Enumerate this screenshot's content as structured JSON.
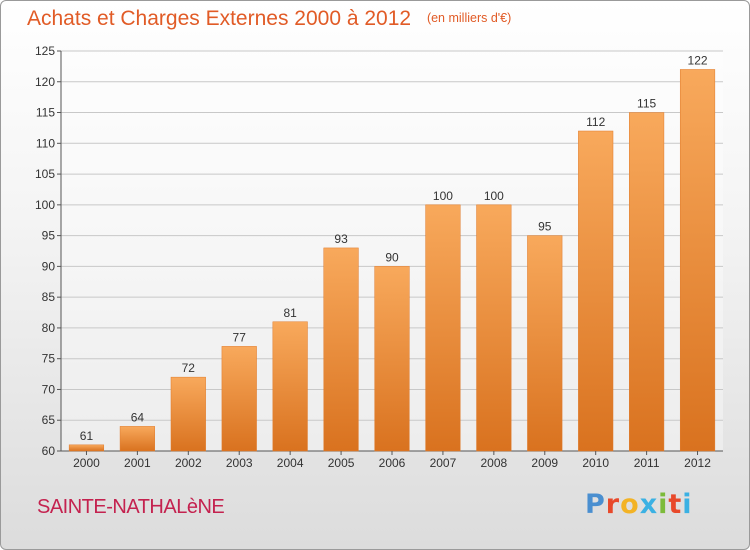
{
  "header": {
    "title": "Achats et Charges Externes 2000 à 2012",
    "unit": "(en milliers d'€)"
  },
  "footer": {
    "town": "SAINTE-NATHALèNE",
    "brand": [
      "P",
      "r",
      "o",
      "x",
      "i",
      "t",
      "i"
    ]
  },
  "colors": {
    "title": "#e15b26",
    "town": "#c4224f",
    "bar_light": "#f8a95c",
    "bar_dark": "#d9721f"
  },
  "chart_data": {
    "type": "bar",
    "title": "Achats et Charges Externes 2000 à 2012",
    "subtitle": "(en milliers d'€)",
    "categories": [
      "2000",
      "2001",
      "2002",
      "2003",
      "2004",
      "2005",
      "2006",
      "2007",
      "2008",
      "2009",
      "2010",
      "2011",
      "2012"
    ],
    "values": [
      61,
      64,
      72,
      77,
      81,
      93,
      90,
      100,
      100,
      95,
      112,
      115,
      122
    ],
    "ylim": [
      60,
      125
    ],
    "yticks": [
      60,
      65,
      70,
      75,
      80,
      85,
      90,
      95,
      100,
      105,
      110,
      115,
      120,
      125
    ],
    "grid": true,
    "xlabel": "",
    "ylabel": ""
  }
}
